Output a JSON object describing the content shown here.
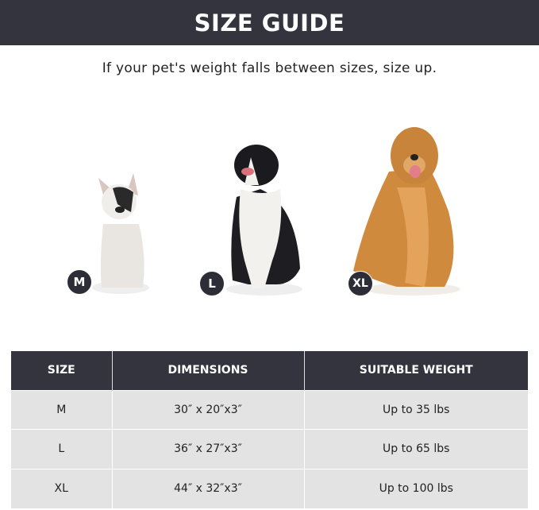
{
  "header": {
    "title": "SIZE GUIDE"
  },
  "subtitle": "If your pet's weight falls between sizes, size up.",
  "badges": {
    "m": "M",
    "l": "L",
    "xl": "XL"
  },
  "table": {
    "headers": [
      "SIZE",
      "DIMENSIONS",
      "SUITABLE WEIGHT"
    ],
    "rows": [
      [
        "M",
        "30″ x 20″x3″",
        "Up to 35 lbs"
      ],
      [
        "L",
        "36″ x 27″x3″",
        "Up to 65 lbs"
      ],
      [
        "XL",
        "44″ x 32″x3″",
        "Up to 100 lbs"
      ]
    ]
  },
  "colors": {
    "header_bg": "#34343f",
    "row_bg": "#e3e3e3"
  }
}
